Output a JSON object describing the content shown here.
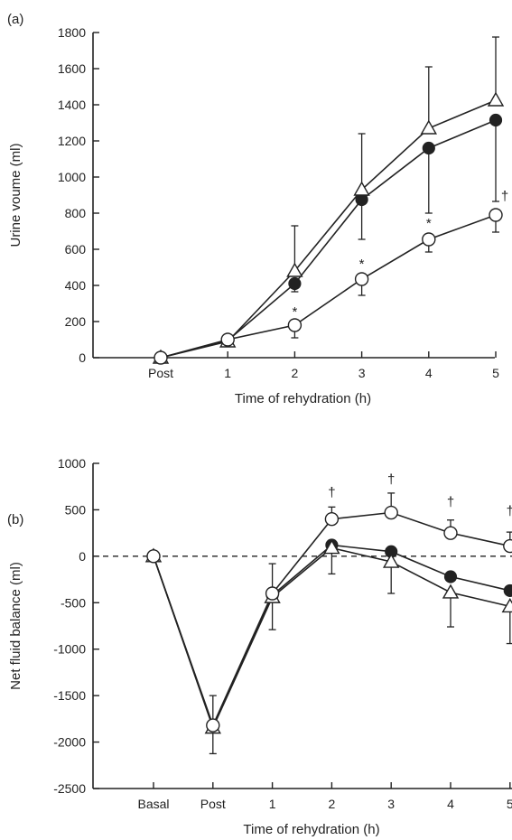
{
  "chart_data": [
    {
      "panel_label": "(a)",
      "type": "line",
      "categories": [
        "Post",
        "1",
        "2",
        "3",
        "4",
        "5"
      ],
      "xlabel": "Time of rehydration (h)",
      "ylabel": "Urine voume (ml)",
      "ylim": [
        0,
        1800
      ],
      "yticks": [
        0,
        200,
        400,
        600,
        800,
        1000,
        1200,
        1400,
        1600,
        1800
      ],
      "grid": false,
      "series": [
        {
          "marker": "filled-circle",
          "values": [
            0,
            95,
            410,
            875,
            1160,
            1315
          ],
          "err_up": [
            0,
            0,
            0,
            0,
            0,
            0
          ],
          "err_down": [
            0,
            0,
            45,
            220,
            360,
            450
          ]
        },
        {
          "marker": "open-triangle",
          "values": [
            0,
            90,
            480,
            930,
            1270,
            1425
          ],
          "err_up": [
            0,
            0,
            250,
            310,
            340,
            350
          ],
          "err_down": [
            0,
            0,
            0,
            0,
            0,
            0
          ]
        },
        {
          "marker": "open-circle",
          "values": [
            0,
            100,
            180,
            435,
            655,
            790
          ],
          "err_up": [
            0,
            0,
            0,
            0,
            0,
            0
          ],
          "err_down": [
            0,
            0,
            70,
            90,
            70,
            95
          ]
        }
      ],
      "annotations": [
        {
          "text": "*",
          "category": "2",
          "y": 230
        },
        {
          "text": "*",
          "category": "3",
          "y": 495
        },
        {
          "text": "*",
          "category": "4",
          "y": 720
        },
        {
          "text": "†",
          "category": "5",
          "y": 870
        }
      ]
    },
    {
      "panel_label": "(b)",
      "type": "line",
      "categories": [
        "Basal",
        "Post",
        "1",
        "2",
        "3",
        "4",
        "5"
      ],
      "xlabel": "Time of rehydration (h)",
      "ylabel": "Net fluid balance (ml)",
      "ylim": [
        -2500,
        1000
      ],
      "yticks": [
        -2500,
        -2000,
        -1500,
        -1000,
        -500,
        0,
        500,
        1000
      ],
      "grid": false,
      "reference_line": {
        "y": 0,
        "style": "dashed"
      },
      "series": [
        {
          "marker": "filled-circle",
          "values": [
            0,
            -1830,
            -420,
            120,
            50,
            -220,
            -370
          ],
          "err_up": [
            0,
            0,
            0,
            0,
            0,
            0,
            0
          ],
          "err_down": [
            0,
            0,
            0,
            0,
            0,
            0,
            0
          ]
        },
        {
          "marker": "open-triangle",
          "values": [
            0,
            -1845,
            -440,
            90,
            -60,
            -390,
            -540
          ],
          "err_up": [
            0,
            0,
            0,
            0,
            0,
            0,
            0
          ],
          "err_down": [
            0,
            280,
            350,
            280,
            340,
            370,
            400
          ]
        },
        {
          "marker": "open-circle",
          "values": [
            0,
            -1820,
            -400,
            400,
            470,
            250,
            110
          ],
          "err_up": [
            0,
            320,
            320,
            130,
            210,
            140,
            150
          ],
          "err_down": [
            0,
            0,
            0,
            0,
            0,
            0,
            0
          ]
        }
      ],
      "annotations": [
        {
          "text": "†",
          "category": "2",
          "y": 640
        },
        {
          "text": "†",
          "category": "3",
          "y": 780
        },
        {
          "text": "†",
          "category": "4",
          "y": 540
        },
        {
          "text": "†",
          "category": "5",
          "y": 440
        }
      ]
    }
  ]
}
